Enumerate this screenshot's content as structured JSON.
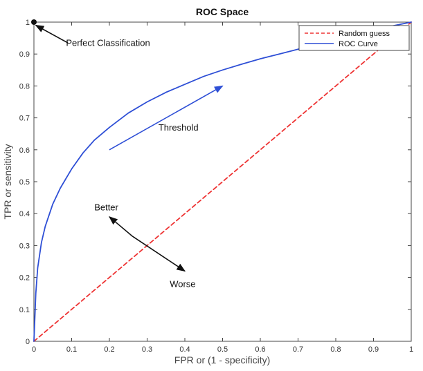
{
  "chart_data": {
    "type": "line",
    "title": "ROC Space",
    "xlabel": "FPR or (1 - specificity)",
    "ylabel": "TPR or sensitivity",
    "xlim": [
      0,
      1
    ],
    "ylim": [
      0,
      1
    ],
    "xticks": [
      "0",
      "0.1",
      "0.2",
      "0.3",
      "0.4",
      "0.5",
      "0.6",
      "0.7",
      "0.8",
      "0.9",
      "1"
    ],
    "yticks": [
      "0",
      "0.1",
      "0.2",
      "0.3",
      "0.4",
      "0.5",
      "0.6",
      "0.7",
      "0.8",
      "0.9",
      "1"
    ],
    "grid": false,
    "legend_position": "top-right",
    "series": [
      {
        "name": "Random guess",
        "color": "#ee3333",
        "style": "dashed",
        "x": [
          0,
          1
        ],
        "y": [
          0,
          1
        ]
      },
      {
        "name": "ROC Curve",
        "color": "#2e4fd6",
        "style": "solid",
        "x": [
          0,
          0.005,
          0.01,
          0.02,
          0.03,
          0.05,
          0.07,
          0.1,
          0.13,
          0.16,
          0.2,
          0.25,
          0.3,
          0.35,
          0.4,
          0.45,
          0.5,
          0.55,
          0.6,
          0.65,
          0.7,
          0.75,
          0.8,
          0.85,
          0.9,
          0.95,
          1
        ],
        "y": [
          0,
          0.15,
          0.23,
          0.31,
          0.36,
          0.43,
          0.48,
          0.54,
          0.59,
          0.63,
          0.67,
          0.715,
          0.75,
          0.78,
          0.805,
          0.83,
          0.85,
          0.868,
          0.885,
          0.9,
          0.915,
          0.93,
          0.945,
          0.96,
          0.975,
          0.988,
          1
        ]
      }
    ],
    "annotations": [
      {
        "text": "Perfect Classification",
        "x": 0.085,
        "y": 0.925
      },
      {
        "text": "Threshold",
        "x": 0.33,
        "y": 0.66
      },
      {
        "text": "Better",
        "x": 0.16,
        "y": 0.41
      },
      {
        "text": "Worse",
        "x": 0.36,
        "y": 0.17
      }
    ],
    "arrows": [
      {
        "from": [
          0.2,
          0.6
        ],
        "to": [
          0.5,
          0.8
        ],
        "color": "#2e4fd6"
      },
      {
        "from": [
          0.26,
          0.33
        ],
        "to": [
          0.2,
          0.39
        ],
        "color": "#111111"
      },
      {
        "from": [
          0.26,
          0.33
        ],
        "to": [
          0.4,
          0.22
        ],
        "color": "#111111"
      },
      {
        "from": [
          0.09,
          0.935
        ],
        "to": [
          0.005,
          0.99
        ],
        "color": "#111111"
      }
    ],
    "marker": {
      "x": 0,
      "y": 1,
      "color": "#111111"
    }
  }
}
